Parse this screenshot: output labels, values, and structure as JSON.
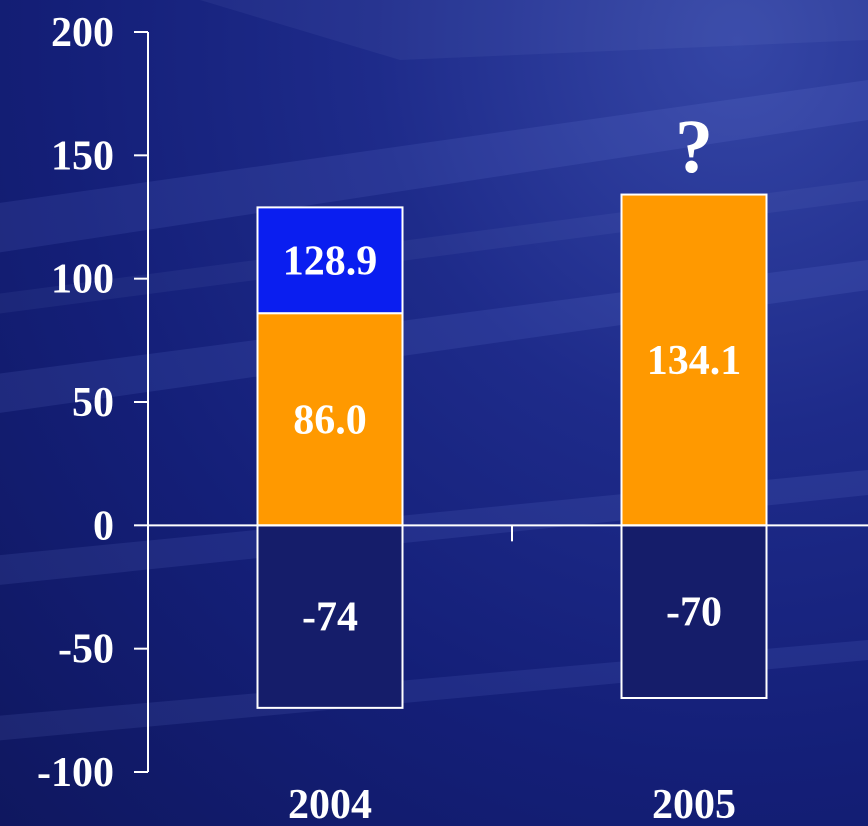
{
  "chart_data": {
    "type": "bar",
    "stacked": true,
    "categories": [
      "2004",
      "2005"
    ],
    "ylim": [
      -100,
      200
    ],
    "yticks": [
      -100,
      -50,
      0,
      50,
      100,
      150,
      200
    ],
    "ytick_labels": [
      "-100",
      "-50",
      "0",
      "50",
      "100",
      "150",
      "200"
    ],
    "grid": false,
    "series": [
      {
        "segment": "negative",
        "color": "#151d6a",
        "values": [
          -74,
          -70
        ],
        "labels": [
          "-74",
          "-70"
        ]
      },
      {
        "segment": "orange",
        "color": "#ff9900",
        "values": [
          86.0,
          134.1
        ],
        "labels": [
          "86.0",
          "134.1"
        ]
      },
      {
        "segment": "blue",
        "color": "#0a1ef0",
        "values": [
          42.9,
          null
        ],
        "labels": [
          "128.9",
          null
        ]
      }
    ],
    "annotations": [
      {
        "category": "2005",
        "text": "?"
      }
    ],
    "colors": {
      "axis": "#ffffff",
      "bar_outline": "#ffffff",
      "text": "#ffffff"
    }
  }
}
